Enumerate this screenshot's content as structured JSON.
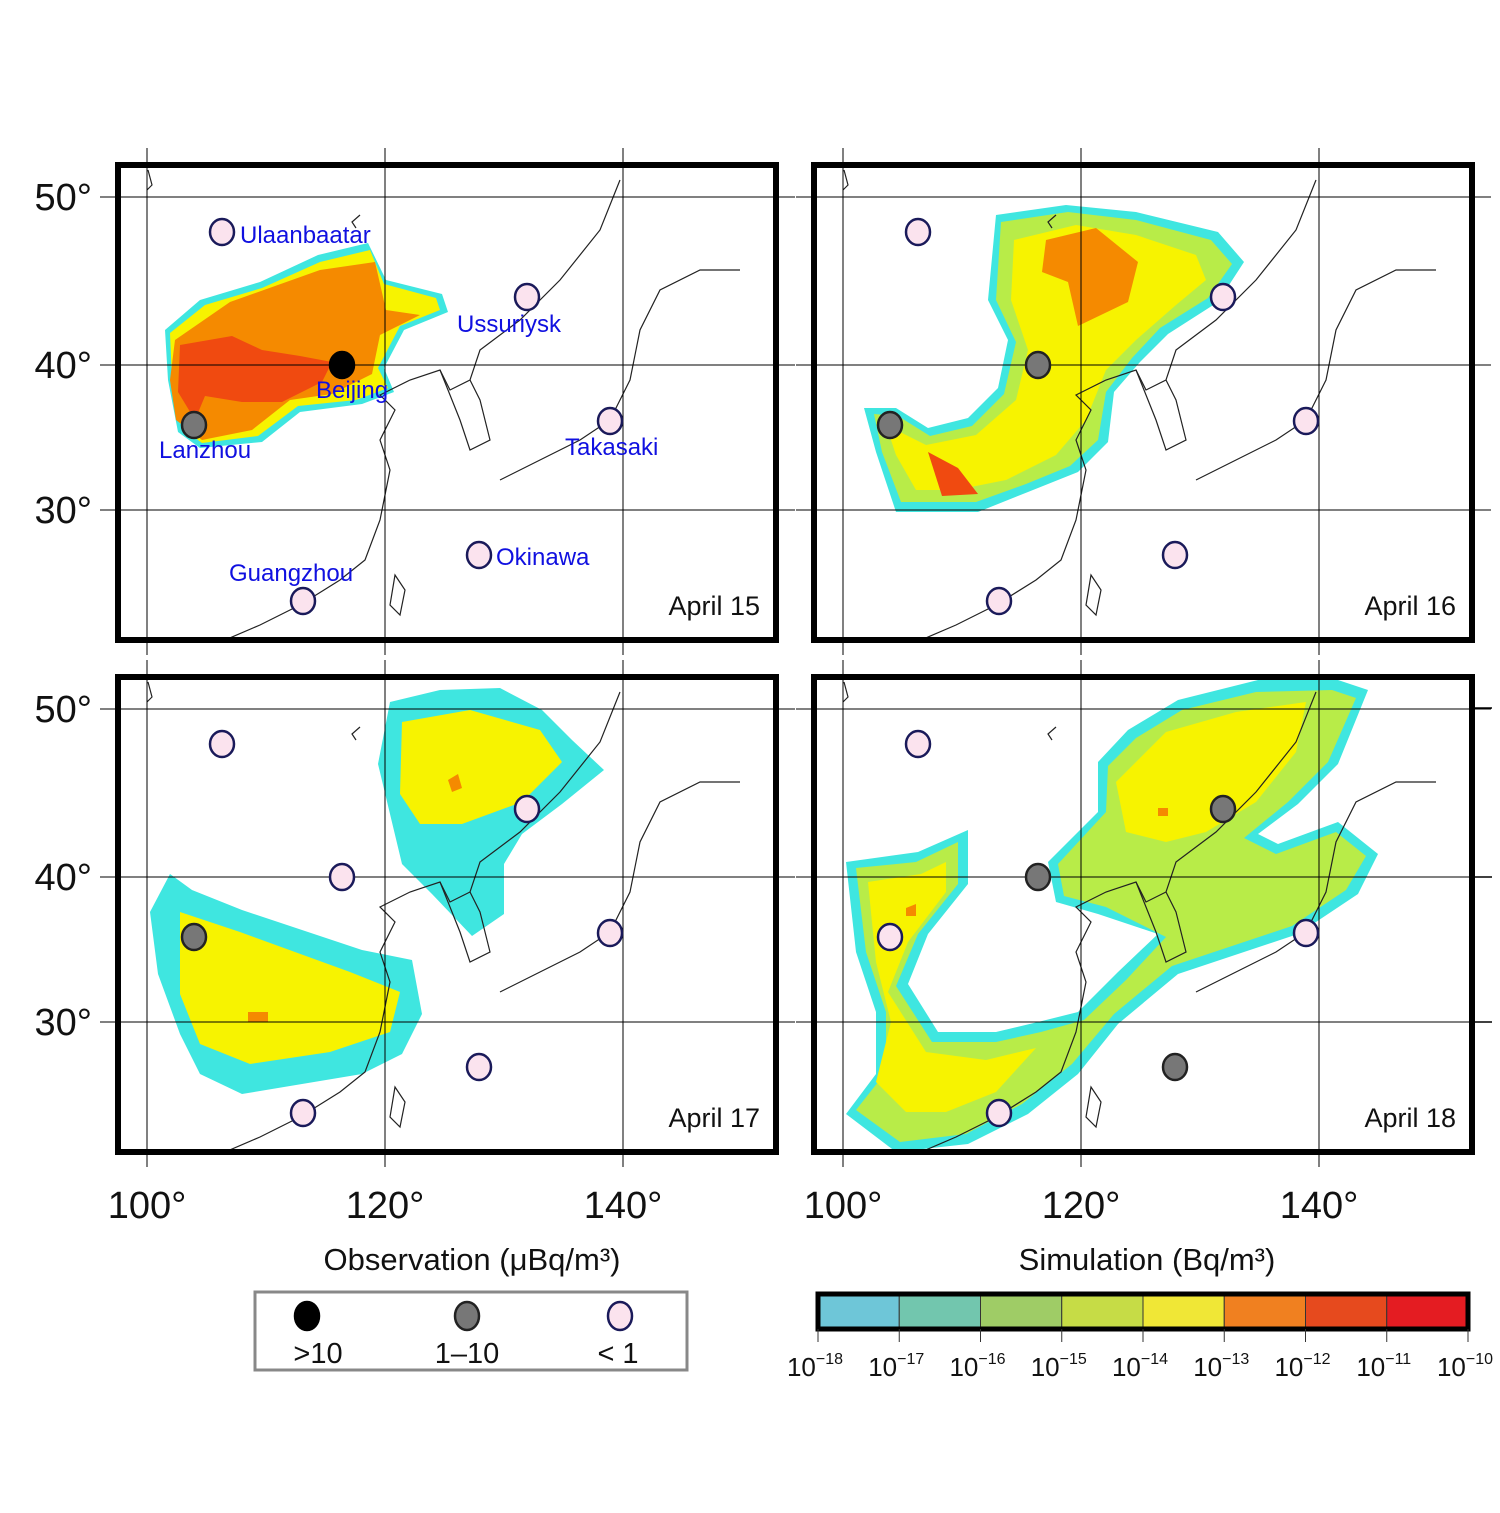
{
  "figure": {
    "panels": [
      {
        "date": "April 15",
        "show_names": true,
        "stations": {
          "Ulaanbaatar": "<1",
          "Beijing": ">10",
          "Lanzhou": "1-10",
          "Ussuriysk": "<1",
          "Takasaki": "<1",
          "Okinawa": "<1",
          "Guangzhou": "<1"
        }
      },
      {
        "date": "April 16",
        "show_names": false,
        "stations": {
          "Ulaanbaatar": "<1",
          "Beijing": "1-10",
          "Lanzhou": "1-10",
          "Ussuriysk": "<1",
          "Takasaki": "<1",
          "Okinawa": "<1",
          "Guangzhou": "<1"
        }
      },
      {
        "date": "April 17",
        "show_names": false,
        "stations": {
          "Ulaanbaatar": "<1",
          "Beijing": "<1",
          "Lanzhou": "1-10",
          "Ussuriysk": "<1",
          "Takasaki": "<1",
          "Okinawa": "<1",
          "Guangzhou": "<1"
        }
      },
      {
        "date": "April 18",
        "show_names": false,
        "stations": {
          "Ulaanbaatar": "<1",
          "Beijing": "1-10",
          "Lanzhou": "<1",
          "Ussuriysk": "1-10",
          "Takasaki": "<1",
          "Okinawa": "1-10",
          "Guangzhou": "<1"
        }
      }
    ],
    "station_names": [
      "Ulaanbaatar",
      "Beijing",
      "Lanzhou",
      "Ussuriysk",
      "Takasaki",
      "Okinawa",
      "Guangzhou"
    ],
    "lon_ticks": [
      "100°",
      "120°",
      "140°"
    ],
    "lat_ticks": [
      "50°",
      "40°",
      "30°"
    ],
    "observation_title": "Observation (μBq/m³)",
    "simulation_title": "Simulation (Bq/m³)",
    "legend": [
      {
        "label": ">10",
        "category": ">10",
        "color": "#000000"
      },
      {
        "label": "1–10",
        "category": "1-10",
        "color": "#777777"
      },
      {
        "label": "< 1",
        "category": "<1",
        "color": "#fbe3ee"
      }
    ],
    "colorbar": {
      "colors": [
        "#6ec6d8",
        "#72c6ae",
        "#9fcc66",
        "#c6dc46",
        "#f0e736",
        "#f08020",
        "#e64a1e",
        "#e41c22"
      ],
      "tick_base": "10",
      "tick_exponents": [
        "−18",
        "−17",
        "−16",
        "−15",
        "−14",
        "−13",
        "−12",
        "−11",
        "−10"
      ]
    },
    "plume_colors": {
      "edge": "#3fe6e0",
      "green": "#b8ec48",
      "yellow": "#f7f300",
      "orange": "#f58a00",
      "red": "#f04a10"
    }
  }
}
